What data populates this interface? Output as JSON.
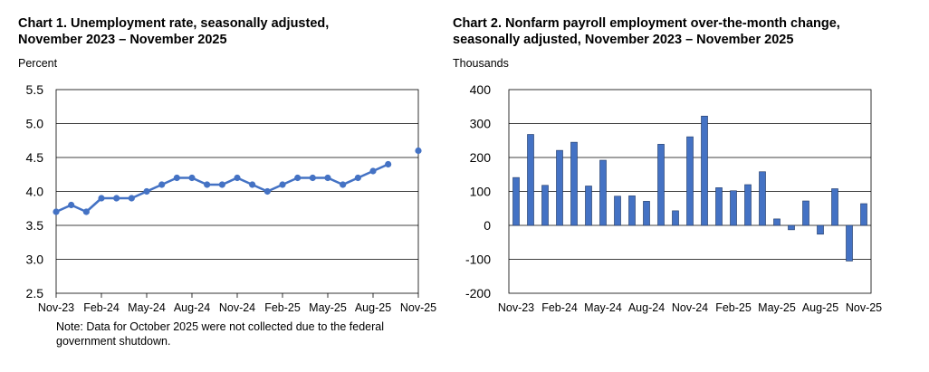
{
  "colors": {
    "series": "#4472C4",
    "bar_outline": "#1F3864",
    "grid": "#000000"
  },
  "chart_data": [
    {
      "type": "line",
      "title": "Chart 1. Unemployment rate, seasonally adjusted, November 2023 – November 2025",
      "title_line1": "Chart 1. Unemployment rate, seasonally adjusted,",
      "title_line2": "November 2023 – November 2025",
      "ylabel": "Percent",
      "xlabel": "",
      "ylim": [
        2.5,
        5.5
      ],
      "yticks": [
        "2.5",
        "3.0",
        "3.5",
        "4.0",
        "4.5",
        "5.0",
        "5.5"
      ],
      "xtick_labels": [
        "Nov-23",
        "Feb-24",
        "May-24",
        "Aug-24",
        "Nov-24",
        "Feb-25",
        "May-25",
        "Aug-25",
        "Nov-25"
      ],
      "grid": true,
      "series": [
        {
          "name": "Unemployment rate",
          "values": [
            3.7,
            3.8,
            3.7,
            3.9,
            3.9,
            3.9,
            4.0,
            4.1,
            4.2,
            4.2,
            4.1,
            4.1,
            4.2,
            4.1,
            4.0,
            4.1,
            4.2,
            4.2,
            4.2,
            4.1,
            4.2,
            4.3,
            4.4,
            null,
            4.6
          ]
        }
      ],
      "note": "Note: Data for October 2025 were not collected due to the federal government shutdown."
    },
    {
      "type": "bar",
      "title": "Chart 2. Nonfarm payroll employment over-the-month change, seasonally adjusted, November 2023 – November 2025",
      "title_line1": "Chart 2. Nonfarm payroll employment over-the-month change,",
      "title_line2": "seasonally adjusted, November 2023 – November 2025",
      "ylabel": "Thousands",
      "xlabel": "",
      "ylim": [
        -200,
        400
      ],
      "yticks": [
        "400",
        "300",
        "200",
        "100",
        "0",
        "-100",
        "-200"
      ],
      "xtick_labels": [
        "Nov-23",
        "Feb-24",
        "May-24",
        "Aug-24",
        "Nov-24",
        "Feb-25",
        "May-25",
        "Aug-25",
        "Nov-25"
      ],
      "grid": true,
      "series": [
        {
          "name": "Over-the-month change",
          "values": [
            141,
            268,
            118,
            221,
            245,
            116,
            192,
            86,
            87,
            71,
            239,
            43,
            261,
            322,
            111,
            102,
            120,
            158,
            19,
            -13,
            72,
            -26,
            108,
            -105,
            64
          ]
        }
      ]
    }
  ]
}
